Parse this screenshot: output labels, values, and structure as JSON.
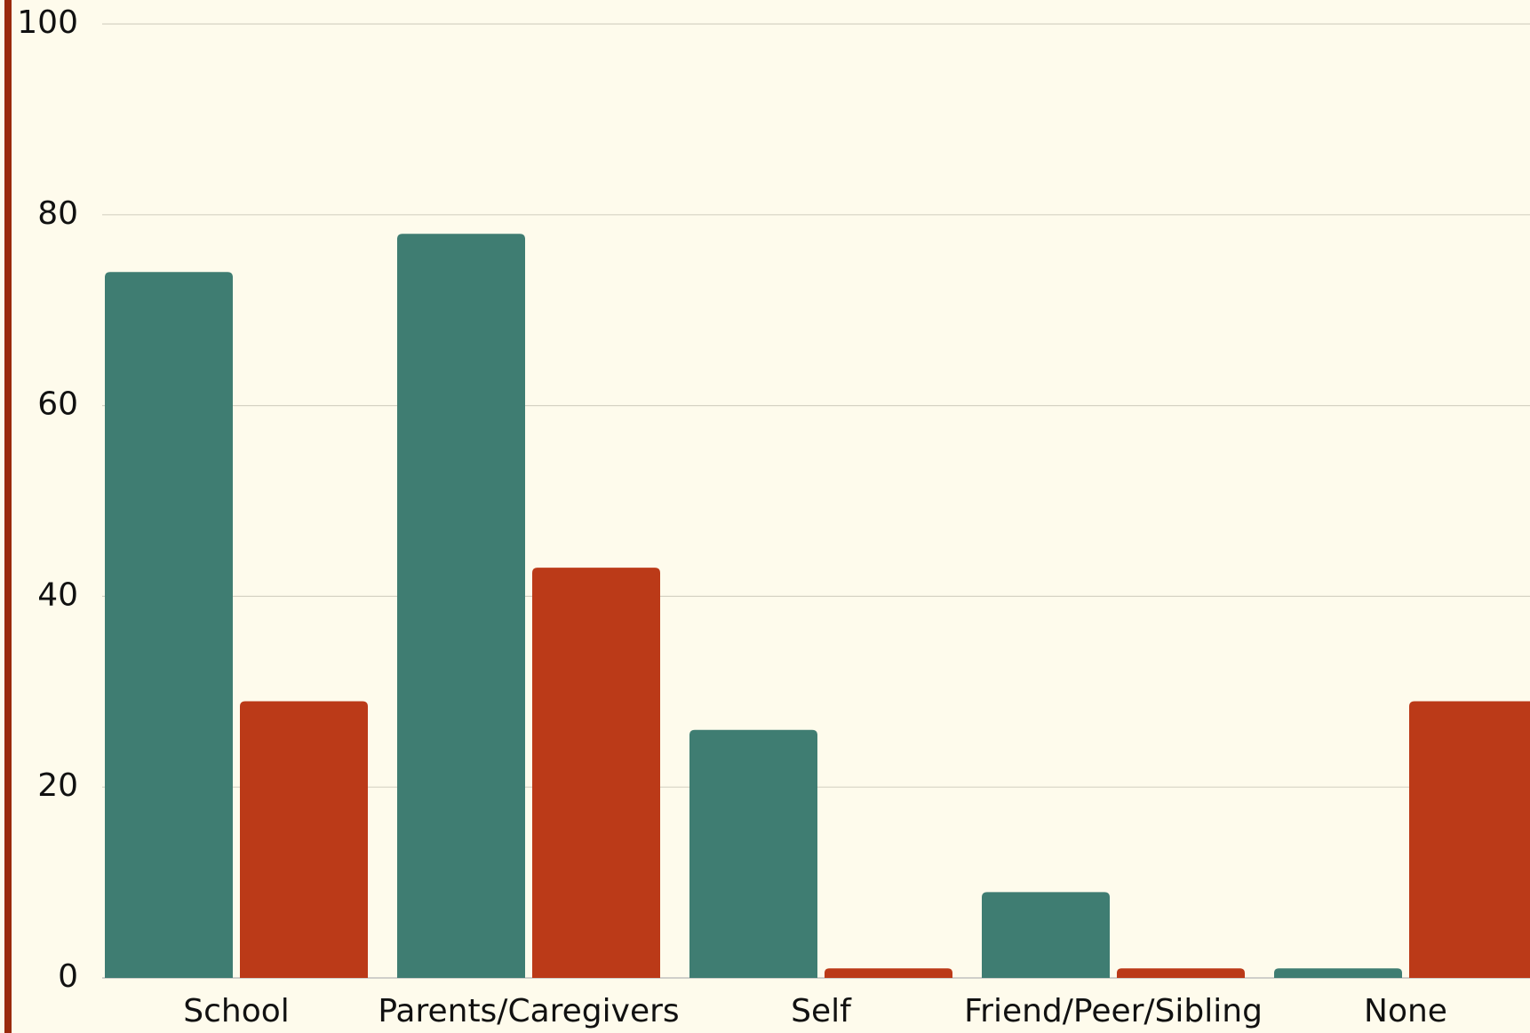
{
  "chart_data": {
    "type": "bar",
    "categories": [
      "School",
      "Parents/Caregivers",
      "Self",
      "Friend/Peer/Sibling",
      "None"
    ],
    "series": [
      {
        "color": "#3f7d72",
        "values": [
          74,
          78,
          26,
          9,
          1
        ]
      },
      {
        "color": "#bb3a18",
        "values": [
          29,
          43,
          1,
          1,
          29
        ]
      }
    ],
    "ylim": [
      0,
      100
    ],
    "yticks": [
      0,
      20,
      40,
      60,
      80,
      100
    ],
    "grid": true
  }
}
